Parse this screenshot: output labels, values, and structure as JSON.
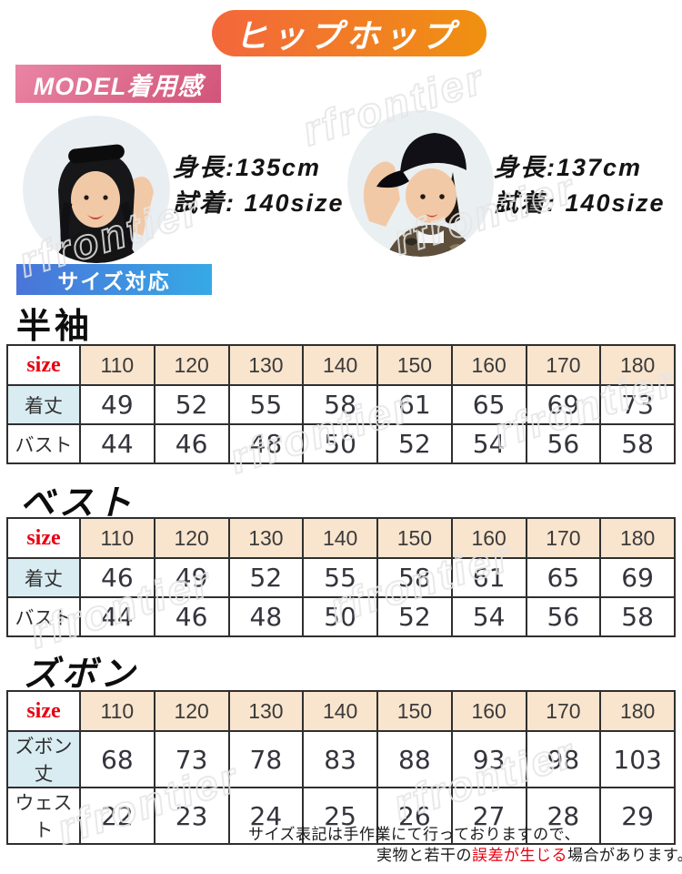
{
  "banner": {
    "title": "ヒップホップ"
  },
  "model_section": {
    "label": "MODEL着用感",
    "models": [
      {
        "id": "girl",
        "height": "身長:135cm",
        "fitting": "試着: 140size"
      },
      {
        "id": "boy",
        "height": "身長:137cm",
        "fitting": "試着: 140size"
      }
    ]
  },
  "size_section": {
    "label": "サイズ対応"
  },
  "tables": [
    {
      "title": "半袖",
      "size_label": "size",
      "sizes": [
        "110",
        "120",
        "130",
        "140",
        "150",
        "160",
        "170",
        "180"
      ],
      "rows": [
        {
          "label": "着丈",
          "values": [
            "49",
            "52",
            "55",
            "58",
            "61",
            "65",
            "69",
            "73"
          ]
        },
        {
          "label": "バスト",
          "values": [
            "44",
            "46",
            "48",
            "50",
            "52",
            "54",
            "56",
            "58"
          ]
        }
      ]
    },
    {
      "title": "ベスト",
      "size_label": "size",
      "sizes": [
        "110",
        "120",
        "130",
        "140",
        "150",
        "160",
        "170",
        "180"
      ],
      "rows": [
        {
          "label": "着丈",
          "values": [
            "46",
            "49",
            "52",
            "55",
            "58",
            "61",
            "65",
            "69"
          ]
        },
        {
          "label": "バスト",
          "values": [
            "44",
            "46",
            "48",
            "50",
            "52",
            "54",
            "56",
            "58"
          ]
        }
      ]
    },
    {
      "title": "ズボン",
      "size_label": "size",
      "sizes": [
        "110",
        "120",
        "130",
        "140",
        "150",
        "160",
        "170",
        "180"
      ],
      "rows": [
        {
          "label": "ズボン丈",
          "values": [
            "68",
            "73",
            "78",
            "83",
            "88",
            "93",
            "98",
            "103"
          ]
        },
        {
          "label": "ウェスト",
          "values": [
            "22",
            "23",
            "24",
            "25",
            "26",
            "27",
            "28",
            "29"
          ]
        }
      ]
    }
  ],
  "note": {
    "line1": "サイズ表記は手作業にて行っておりますので、",
    "line2_before": "実物と若干の",
    "line2_red": "誤差が生じる",
    "line2_after": "場合があります。"
  },
  "watermark": {
    "text": "rfrontier"
  },
  "colors": {
    "banner_gradient": [
      "#f3673c",
      "#f09110"
    ],
    "model_label_gradient": [
      "#ea85a3",
      "#d15479"
    ],
    "size_label_gradient": [
      "#4a74d9",
      "#36a9e6"
    ],
    "table_header_bg": "#f9e4cd",
    "row_label_bg": "#d9ecf2",
    "size_text_red": "#e60012",
    "note_accent_red": "#e60012"
  }
}
